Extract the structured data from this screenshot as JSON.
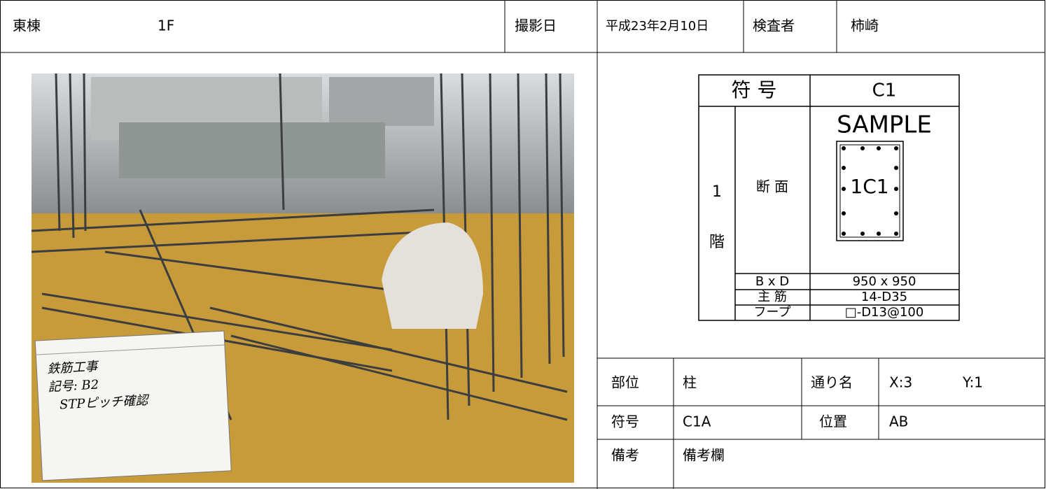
{
  "header": {
    "building": "東棟",
    "floor": "1F",
    "date_label": "撮影日",
    "date": "平成23年2月10日",
    "inspector_label": "検査者",
    "inspector": "柿崎"
  },
  "photo": {
    "board": [
      "鉄筋工事",
      "記号: B2",
      "STPピッチ確認"
    ]
  },
  "drawing": {
    "symbol_label": "符 号",
    "symbol": "C1",
    "floor_number": "1",
    "floor_unit": "階",
    "section_label": "断 面",
    "sample": "SAMPLE",
    "section_mark": "1C1",
    "rows": [
      [
        "B x D",
        "950 x 950"
      ],
      [
        "主 筋",
        "14-D35"
      ],
      [
        "フープ",
        "□-D13@100"
      ]
    ]
  },
  "info": {
    "rows": [
      [
        "部位",
        "柱",
        "通り名",
        "X:3",
        "Y:1"
      ],
      [
        "符号",
        "C1A",
        "位置",
        "AB"
      ],
      [
        "備考",
        "備考欄"
      ]
    ]
  }
}
